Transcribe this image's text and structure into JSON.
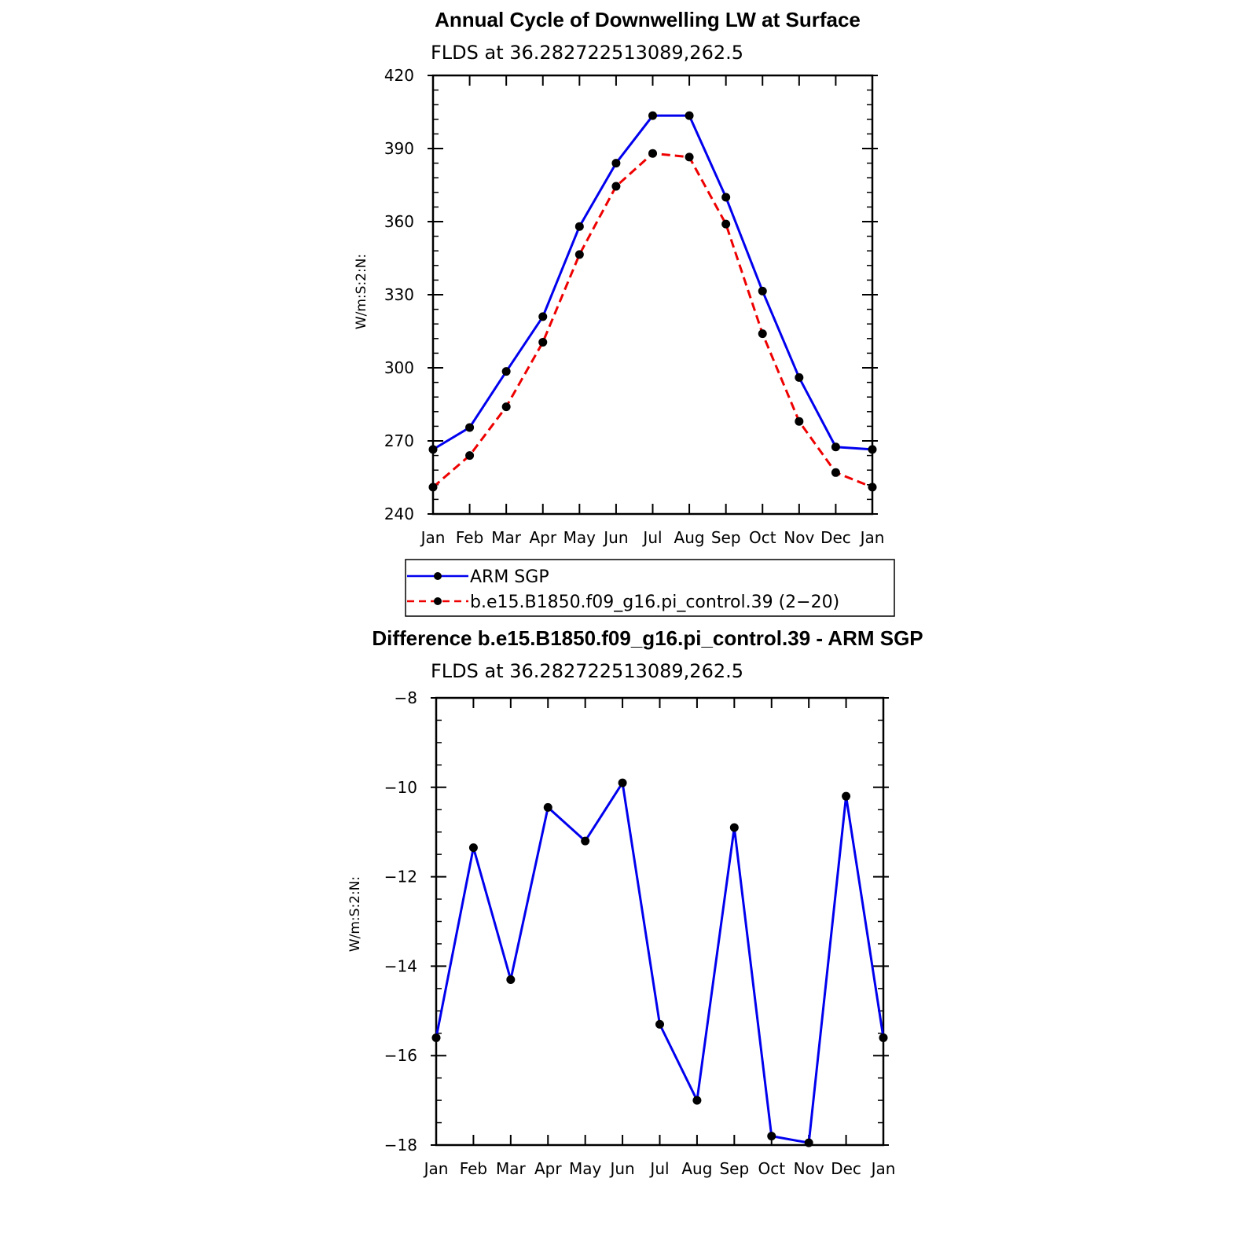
{
  "chart_data": [
    {
      "type": "line",
      "title": "Annual Cycle of Downwelling LW at Surface",
      "subtitle": "FLDS at 36.282722513089,262.5",
      "ylabel": "W/m:S:2:N:",
      "xlabel": "",
      "categories": [
        "Jan",
        "Feb",
        "Mar",
        "Apr",
        "May",
        "Jun",
        "Jul",
        "Aug",
        "Sep",
        "Oct",
        "Nov",
        "Dec",
        "Jan"
      ],
      "ylim": [
        240,
        420
      ],
      "yticks": [
        "240",
        "270",
        "300",
        "330",
        "360",
        "390",
        "420"
      ],
      "grid": false,
      "legend_position": "bottom",
      "series": [
        {
          "name": "ARM SGP",
          "color": "#0000ee",
          "dash": "solid",
          "values": [
            266.5,
            275.5,
            298.5,
            321,
            358,
            384,
            403.5,
            403.5,
            370,
            331.5,
            296,
            267.5,
            266.5
          ]
        },
        {
          "name": "b.e15.B1850.f09_g16.pi_control.39 (2−20)",
          "color": "#ee0000",
          "dash": "dashed",
          "values": [
            251,
            264,
            284,
            310.5,
            346.5,
            374.5,
            388,
            386.5,
            359,
            314,
            278,
            257,
            251
          ]
        }
      ]
    },
    {
      "type": "line",
      "title": "Difference b.e15.B1850.f09_g16.pi_control.39 - ARM SGP",
      "subtitle": "FLDS at 36.282722513089,262.5",
      "ylabel": "W/m:S:2:N:",
      "xlabel": "",
      "categories": [
        "Jan",
        "Feb",
        "Mar",
        "Apr",
        "May",
        "Jun",
        "Jul",
        "Aug",
        "Sep",
        "Oct",
        "Nov",
        "Dec",
        "Jan"
      ],
      "ylim": [
        -18,
        -8
      ],
      "yticks": [
        "−18",
        "−16",
        "−14",
        "−12",
        "−10",
        "−8"
      ],
      "grid": false,
      "series": [
        {
          "color": "#0000ee",
          "dash": "solid",
          "values": [
            -15.6,
            -11.35,
            -14.3,
            -10.45,
            -11.2,
            -9.9,
            -15.3,
            -17.0,
            -10.9,
            -17.8,
            -17.95,
            -10.2,
            -15.6
          ]
        }
      ]
    }
  ]
}
